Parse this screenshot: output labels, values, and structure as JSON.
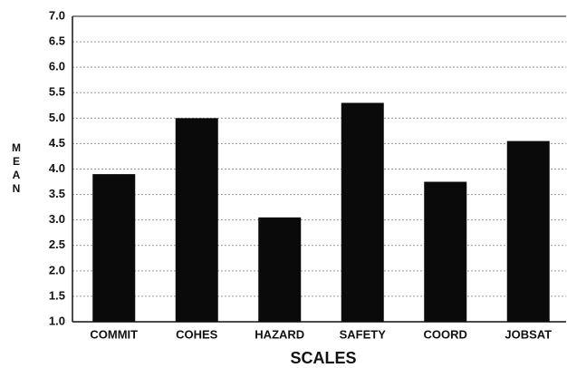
{
  "chart_data": {
    "type": "bar",
    "categories": [
      "COMMIT",
      "COHES",
      "HAZARD",
      "SAFETY",
      "COORD",
      "JOBSAT"
    ],
    "values": [
      3.9,
      5.0,
      3.05,
      5.3,
      3.75,
      4.55
    ],
    "color": "#0a0a0a",
    "x_label": "SCALES",
    "y_label": "MEAN",
    "ylim": [
      1,
      7
    ],
    "yticks": [
      {
        "value": 1,
        "label": "1.0"
      },
      1.5,
      {
        "value": 2,
        "label": "2.0"
      },
      2.5,
      {
        "value": 3,
        "label": "3.0"
      },
      3.5,
      {
        "value": 4,
        "label": "4.0"
      },
      4.5,
      {
        "value": 5,
        "label": "5.0"
      },
      5.5,
      {
        "value": 6,
        "label": "6.0"
      },
      6.5,
      {
        "value": 7,
        "label": "7.0"
      }
    ],
    "grid": true
  }
}
